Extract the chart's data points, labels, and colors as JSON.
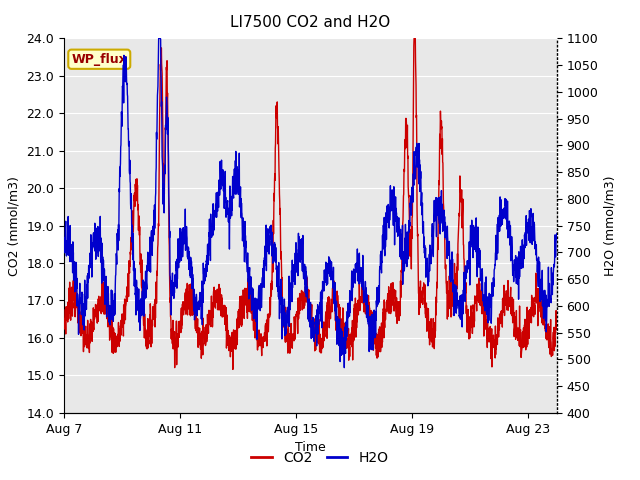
{
  "title": "LI7500 CO2 and H2O",
  "xlabel": "Time",
  "ylabel_left": "CO2 (mmol/m3)",
  "ylabel_right": "H2O (mmol/m3)",
  "ylim_left": [
    14.0,
    24.0
  ],
  "ylim_right": [
    400,
    1100
  ],
  "yticks_left": [
    14.0,
    15.0,
    16.0,
    17.0,
    18.0,
    19.0,
    20.0,
    21.0,
    22.0,
    23.0,
    24.0
  ],
  "yticks_right": [
    400,
    450,
    500,
    550,
    600,
    650,
    700,
    750,
    800,
    850,
    900,
    950,
    1000,
    1050,
    1100
  ],
  "xtick_labels": [
    "Aug 7",
    "Aug 11",
    "Aug 15",
    "Aug 19",
    "Aug 23"
  ],
  "xtick_positions": [
    0,
    4,
    8,
    12,
    16
  ],
  "xlim": [
    0,
    17
  ],
  "co2_color": "#cc0000",
  "h2o_color": "#0000cc",
  "fig_bg_color": "#ffffff",
  "plot_bg_color": "#e8e8e8",
  "grid_color": "#ffffff",
  "wp_flux_bg": "#ffffcc",
  "wp_flux_border": "#ccaa00",
  "wp_flux_text": "#990000",
  "legend_co2_label": "CO2",
  "legend_h2o_label": "H2O",
  "title_fontsize": 11,
  "tick_fontsize": 9,
  "label_fontsize": 9,
  "legend_fontsize": 10,
  "linewidth": 1.0
}
